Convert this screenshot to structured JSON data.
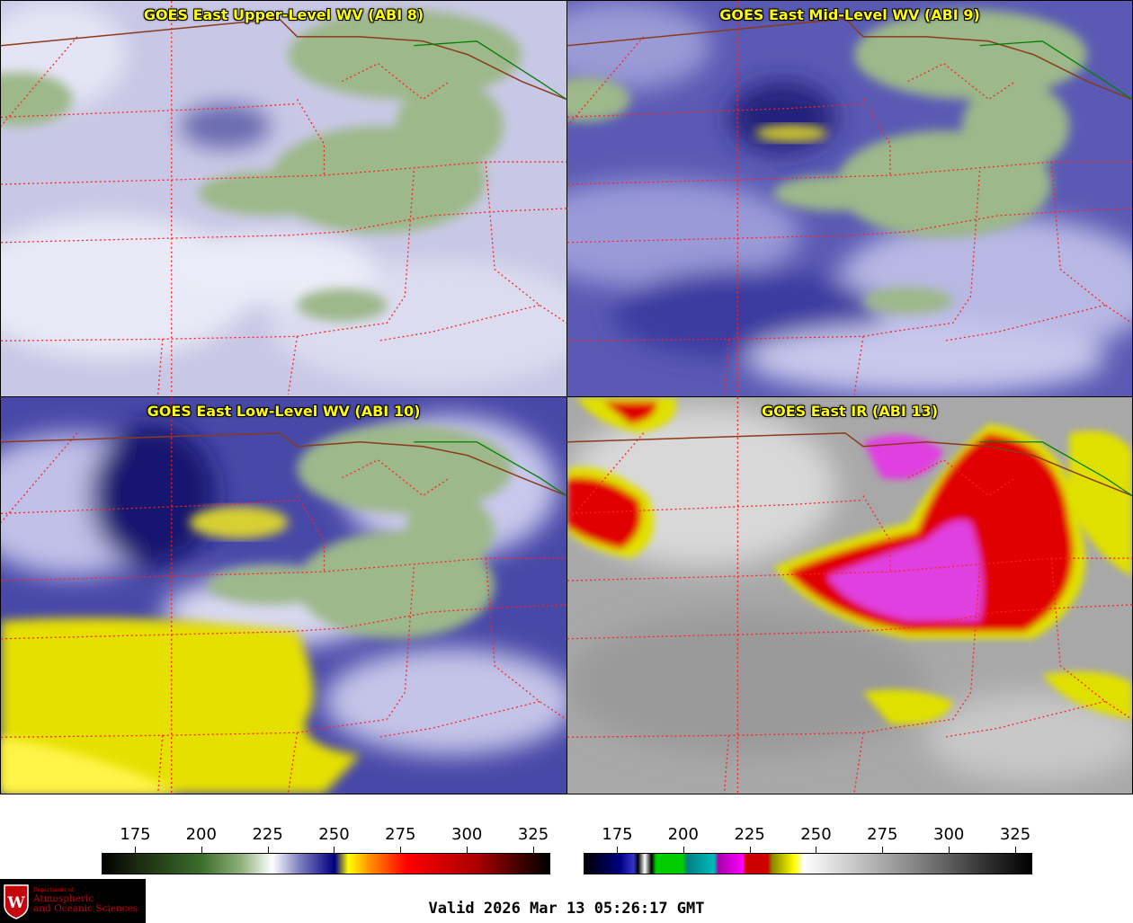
{
  "panels": {
    "upper": {
      "title": "GOES East Upper-Level WV (ABI 8)"
    },
    "mid": {
      "title": "GOES East Mid-Level WV (ABI 9)"
    },
    "low": {
      "title": "GOES East Low-Level WV (ABI 10)"
    },
    "ir": {
      "title": "GOES East IR (ABI 13)"
    }
  },
  "colorbars": {
    "wv": {
      "ticks": [
        "175",
        "200",
        "225",
        "250",
        "275",
        "300",
        "325"
      ],
      "positions": [
        0.075,
        0.222,
        0.37,
        0.518,
        0.666,
        0.814,
        0.962
      ]
    },
    "ir": {
      "ticks": [
        "175",
        "200",
        "225",
        "250",
        "275",
        "300",
        "325"
      ],
      "positions": [
        0.075,
        0.222,
        0.37,
        0.518,
        0.666,
        0.814,
        0.962
      ]
    }
  },
  "logo": {
    "line1": "Department of",
    "line2": "Atmospheric",
    "line3": "and Oceanic Sciences"
  },
  "valid_time": "Valid 2026 Mar 13 05:26:17 GMT",
  "colors": {
    "title": "#ffff00",
    "state_borders": "#ff2020",
    "country_border": "#8b3a1a",
    "lake_border": "#008000"
  }
}
